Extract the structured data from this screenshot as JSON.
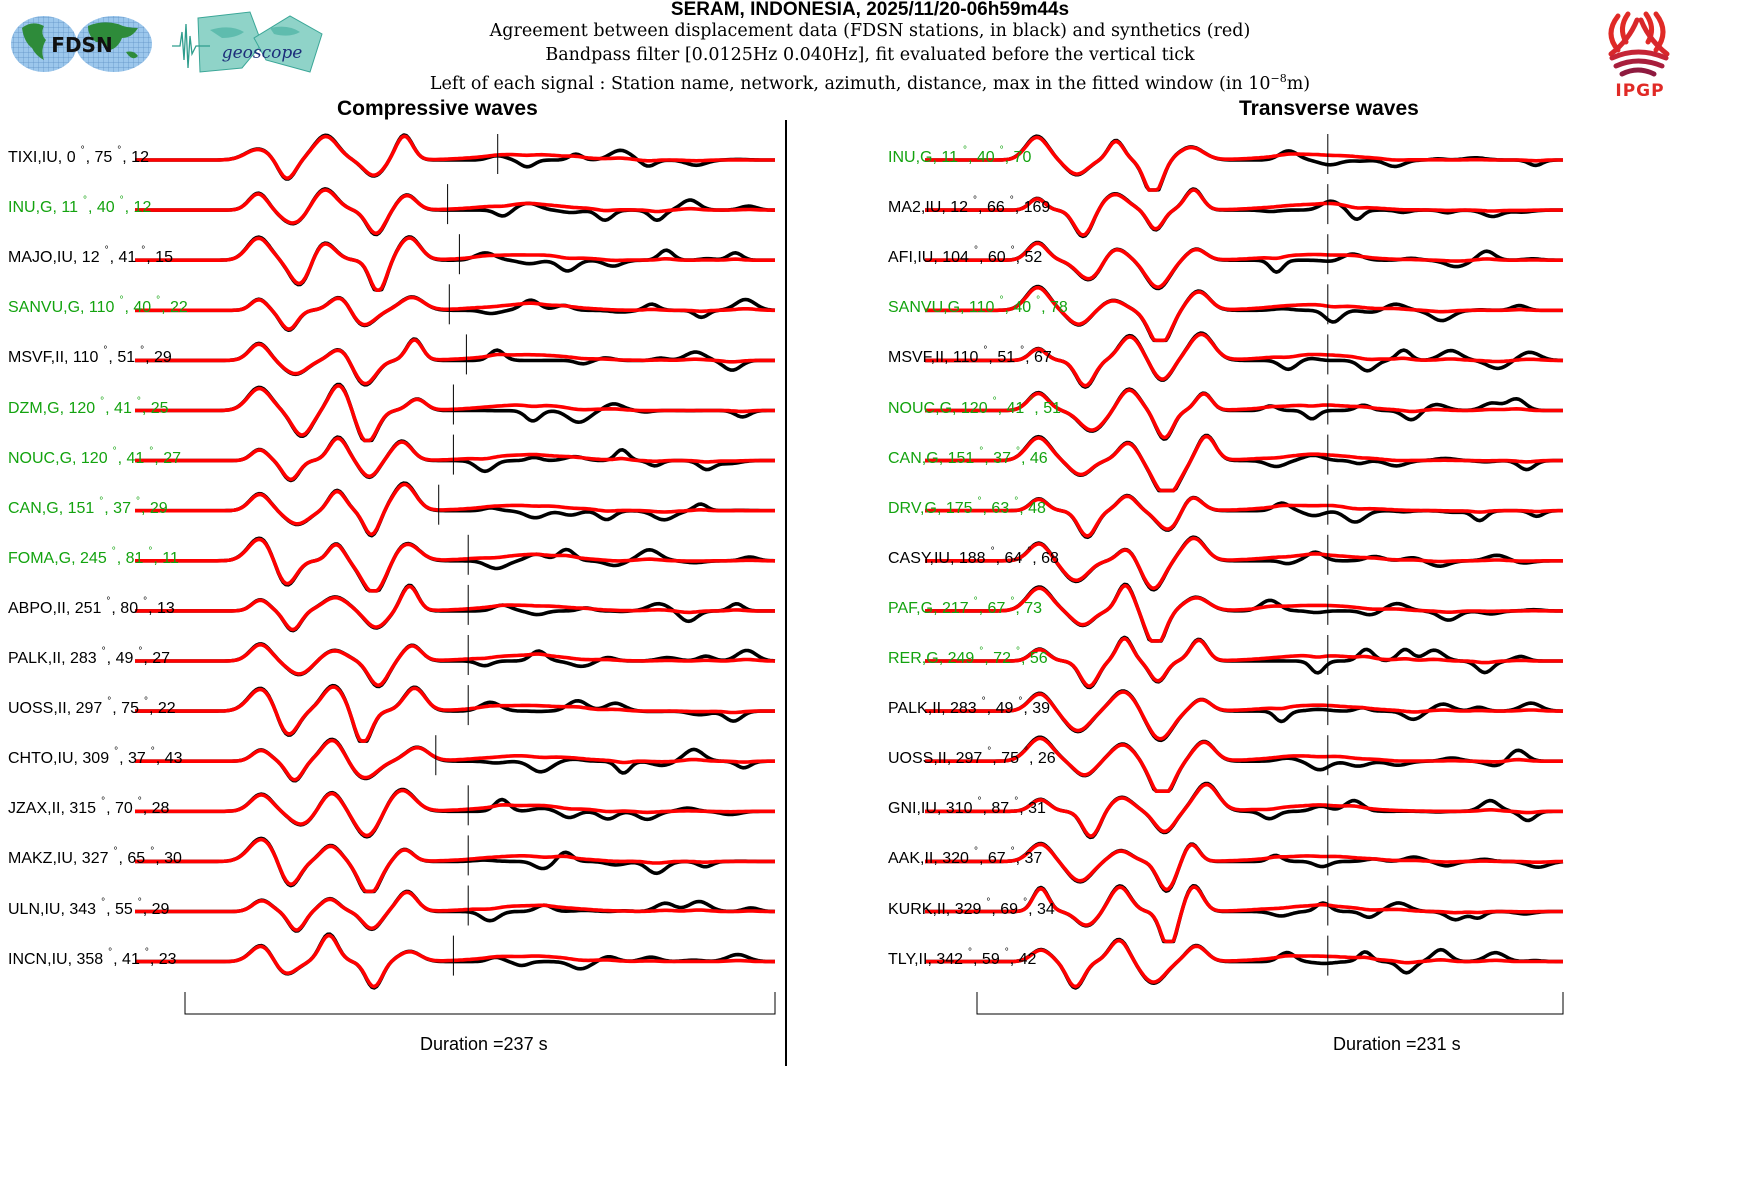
{
  "header": {
    "title": "SERAM, INDONESIA, 2025/11/20-06h59m44s",
    "line1": "Agreement between displacement data (FDSN stations, in black) and synthetics (red)",
    "line2": "Bandpass filter [0.0125Hz 0.040Hz], fit evaluated before the vertical tick",
    "line3_prefix": "Left of each signal : Station name, network, azimuth, distance, max in the fitted window (in 10",
    "line3_exp": "−8",
    "line3_suffix": "m)",
    "logos": {
      "fdsn": "FDSN",
      "geoscope": "geoscope",
      "ipgp": "IPGP"
    }
  },
  "colors": {
    "data": "#000000",
    "synthetic": "#ff0000",
    "geoscope_station": "#13a30f",
    "other_station": "#000000"
  },
  "chart_data": [
    {
      "type": "line",
      "title": "Compressive waves",
      "duration_label": "Duration =237 s",
      "duration_s": 237,
      "series_legend": [
        "data (black)",
        "synthetics (red)"
      ],
      "stations": [
        {
          "station": "TIXI",
          "network": "IU",
          "azimuth": "0",
          "distance": "75",
          "max": "12",
          "geoscope": false
        },
        {
          "station": "INU",
          "network": "G",
          "azimuth": "11",
          "distance": "40",
          "max": "12",
          "geoscope": true
        },
        {
          "station": "MAJO",
          "network": "IU",
          "azimuth": "12",
          "distance": "41",
          "max": "15",
          "geoscope": false
        },
        {
          "station": "SANVU",
          "network": "G",
          "azimuth": "110",
          "distance": "40",
          "max": "22",
          "geoscope": true
        },
        {
          "station": "MSVF",
          "network": "II",
          "azimuth": "110",
          "distance": "51",
          "max": "29",
          "geoscope": false
        },
        {
          "station": "DZM",
          "network": "G",
          "azimuth": "120",
          "distance": "41",
          "max": "25",
          "geoscope": true
        },
        {
          "station": "NOUC",
          "network": "G",
          "azimuth": "120",
          "distance": "41",
          "max": "27",
          "geoscope": true
        },
        {
          "station": "CAN",
          "network": "G",
          "azimuth": "151",
          "distance": "37",
          "max": "29",
          "geoscope": true
        },
        {
          "station": "FOMA",
          "network": "G",
          "azimuth": "245",
          "distance": "81",
          "max": "11",
          "geoscope": true
        },
        {
          "station": "ABPO",
          "network": "II",
          "azimuth": "251",
          "distance": "80",
          "max": "13",
          "geoscope": false
        },
        {
          "station": "PALK",
          "network": "II",
          "azimuth": "283",
          "distance": "49",
          "max": "27",
          "geoscope": false
        },
        {
          "station": "UOSS",
          "network": "II",
          "azimuth": "297",
          "distance": "75",
          "max": "22",
          "geoscope": false
        },
        {
          "station": "CHTO",
          "network": "IU",
          "azimuth": "309",
          "distance": "37",
          "max": "43",
          "geoscope": false
        },
        {
          "station": "JZAX",
          "network": "II",
          "azimuth": "315",
          "distance": "70",
          "max": "28",
          "geoscope": false
        },
        {
          "station": "MAKZ",
          "network": "IU",
          "azimuth": "327",
          "distance": "65",
          "max": "30",
          "geoscope": false
        },
        {
          "station": "ULN",
          "network": "IU",
          "azimuth": "343",
          "distance": "55",
          "max": "29",
          "geoscope": false
        },
        {
          "station": "INCN",
          "network": "IU",
          "azimuth": "358",
          "distance": "41",
          "max": "23",
          "geoscope": false
        }
      ]
    },
    {
      "type": "line",
      "title": "Transverse waves",
      "duration_label": "Duration =231 s",
      "duration_s": 231,
      "series_legend": [
        "data (black)",
        "synthetics (red)"
      ],
      "stations": [
        {
          "station": "INU",
          "network": "G",
          "azimuth": "11",
          "distance": "40",
          "max": "70",
          "geoscope": true
        },
        {
          "station": "MA2",
          "network": "IU",
          "azimuth": "12",
          "distance": "66",
          "max": "169",
          "geoscope": false
        },
        {
          "station": "AFI",
          "network": "IU",
          "azimuth": "104",
          "distance": "60",
          "max": "52",
          "geoscope": false
        },
        {
          "station": "SANVU",
          "network": "G",
          "azimuth": "110",
          "distance": "40",
          "max": "78",
          "geoscope": true
        },
        {
          "station": "MSVF",
          "network": "II",
          "azimuth": "110",
          "distance": "51",
          "max": "67",
          "geoscope": false
        },
        {
          "station": "NOUC",
          "network": "G",
          "azimuth": "120",
          "distance": "41",
          "max": "51",
          "geoscope": true
        },
        {
          "station": "CAN",
          "network": "G",
          "azimuth": "151",
          "distance": "37",
          "max": "46",
          "geoscope": true
        },
        {
          "station": "DRV",
          "network": "G",
          "azimuth": "175",
          "distance": "63",
          "max": "48",
          "geoscope": true
        },
        {
          "station": "CASY",
          "network": "IU",
          "azimuth": "188",
          "distance": "64",
          "max": "68",
          "geoscope": false
        },
        {
          "station": "PAF",
          "network": "G",
          "azimuth": "217",
          "distance": "67",
          "max": "73",
          "geoscope": true
        },
        {
          "station": "RER",
          "network": "G",
          "azimuth": "249",
          "distance": "72",
          "max": "56",
          "geoscope": true
        },
        {
          "station": "PALK",
          "network": "II",
          "azimuth": "283",
          "distance": "49",
          "max": "39",
          "geoscope": false
        },
        {
          "station": "UOSS",
          "network": "II",
          "azimuth": "297",
          "distance": "75",
          "max": "26",
          "geoscope": false
        },
        {
          "station": "GNI",
          "network": "IU",
          "azimuth": "310",
          "distance": "87",
          "max": "31",
          "geoscope": false
        },
        {
          "station": "AAK",
          "network": "II",
          "azimuth": "320",
          "distance": "67",
          "max": "37",
          "geoscope": false
        },
        {
          "station": "KURK",
          "network": "II",
          "azimuth": "329",
          "distance": "69",
          "max": "34",
          "geoscope": false
        },
        {
          "station": "TLY",
          "network": "II",
          "azimuth": "342",
          "distance": "59",
          "max": "42",
          "geoscope": false
        }
      ]
    }
  ]
}
